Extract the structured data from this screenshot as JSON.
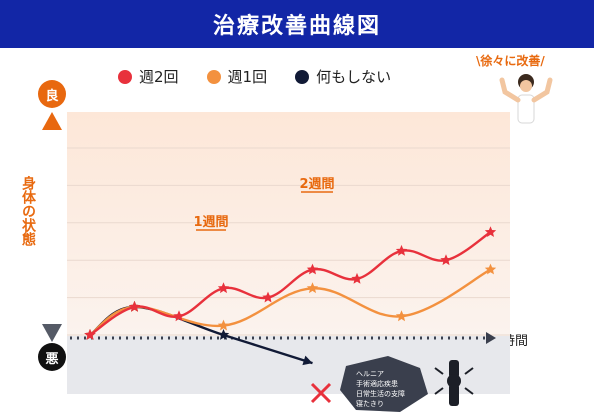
{
  "title": "治療改善曲線図",
  "callout": "\\徐々に改善/",
  "y_axis": {
    "label": "身体の状態",
    "top": "良",
    "bottom": "悪"
  },
  "x_axis": {
    "label": "時間"
  },
  "legend": [
    {
      "label": "週2回",
      "color": "#e8313c"
    },
    {
      "label": "週1回",
      "color": "#f3913f"
    },
    {
      "label": "何もしない",
      "color": "#111a36"
    }
  ],
  "annotations": {
    "once": "1週間",
    "twice": "2週間"
  },
  "risk_box": {
    "items": [
      "ヘルニア",
      "手術適応疾患",
      "日常生活の支障",
      "寝たきり"
    ]
  },
  "chart_data": {
    "type": "line",
    "xlabel": "時間",
    "ylabel": "身体の状態",
    "grid": true,
    "series": [
      {
        "name": "週2回",
        "color": "#e8313c",
        "points": [
          [
            0,
            0
          ],
          [
            1,
            1.5
          ],
          [
            2,
            1
          ],
          [
            3,
            2.5
          ],
          [
            4,
            2
          ],
          [
            5,
            3.5
          ],
          [
            6,
            3
          ],
          [
            7,
            4.5
          ],
          [
            8,
            4
          ],
          [
            9,
            5.5
          ]
        ]
      },
      {
        "name": "週1回",
        "color": "#f3913f",
        "points": [
          [
            0,
            0
          ],
          [
            1,
            1.5
          ],
          [
            3,
            0.5
          ],
          [
            5,
            2.5
          ],
          [
            7,
            1
          ],
          [
            9,
            3.5
          ]
        ]
      },
      {
        "name": "何もしない",
        "color": "#111a36",
        "points": [
          [
            0,
            0
          ],
          [
            1,
            1.5
          ],
          [
            3,
            0
          ],
          [
            5,
            -1.5
          ]
        ]
      }
    ],
    "ylim": [
      -2,
      6
    ]
  }
}
